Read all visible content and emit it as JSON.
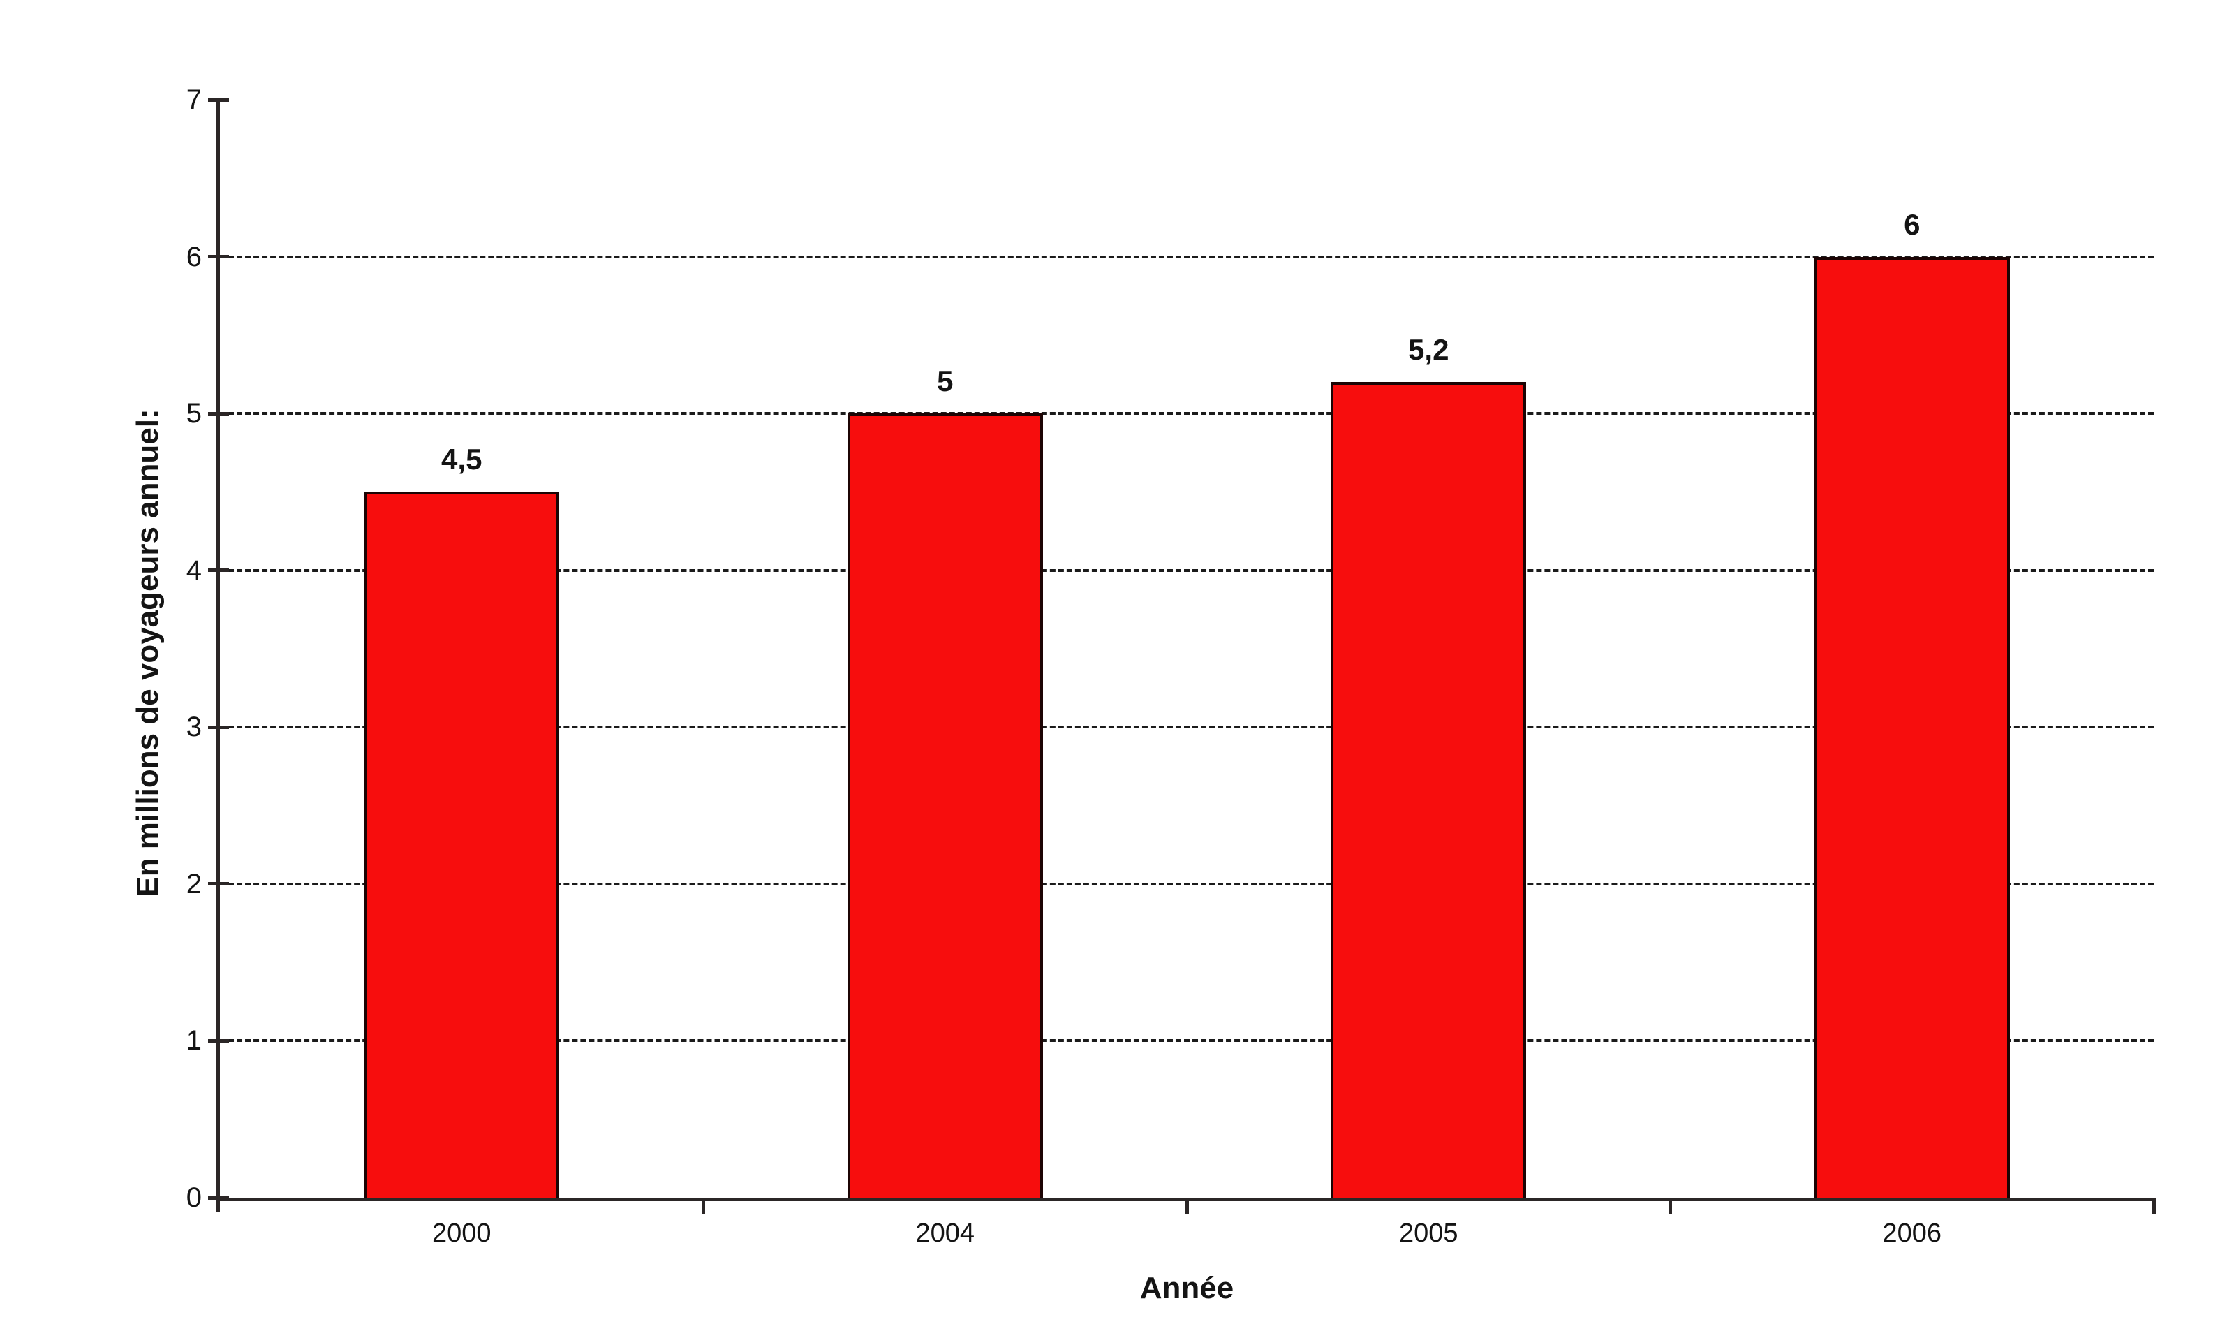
{
  "chart_data": {
    "type": "bar",
    "title": "",
    "xlabel": "Année",
    "ylabel": "En millions de voyageurs annuel:",
    "categories": [
      "2000",
      "2004",
      "2005",
      "2006"
    ],
    "values": [
      4.5,
      5,
      5.2,
      6
    ],
    "value_labels": [
      "4,5",
      "5",
      "5,2",
      "6"
    ],
    "ylim": [
      0,
      7
    ],
    "yticks": [
      0,
      1,
      2,
      3,
      4,
      5,
      6,
      7
    ],
    "grid_values": [
      1,
      2,
      3,
      4,
      5,
      6
    ],
    "grid_style": "dashed",
    "legend_position": "none",
    "bar_color": "#f70d0d",
    "bar_border_color": "#1c0404",
    "axis_color": "#2b2626",
    "text_color": "#141414",
    "background_color": "#ffffff"
  }
}
